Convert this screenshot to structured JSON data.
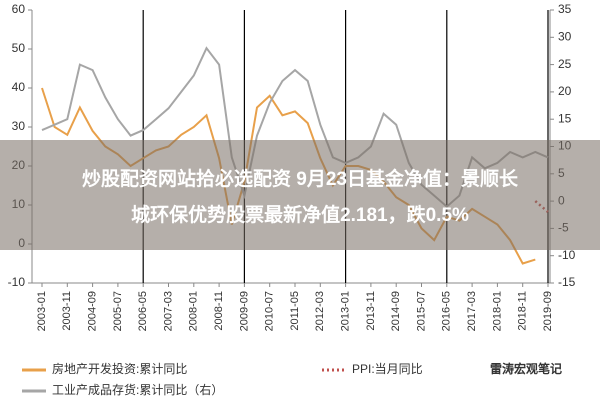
{
  "chart_data": {
    "type": "line",
    "banner": [
      "炒股配资网站拾必选配资 9月23日基金净值：景顺长",
      "城环保优势股票最新净值2.181，跌0.5%"
    ],
    "watermark": "雷涛宏观笔记",
    "xlim": [
      "2003-01",
      "2019-09"
    ],
    "xticks": [
      "2003-01",
      "2003-11",
      "2004-09",
      "2005-07",
      "2006-05",
      "2007-03",
      "2008-01",
      "2008-11",
      "2009-09",
      "2010-07",
      "2011-05",
      "2012-03",
      "2013-01",
      "2013-11",
      "2014-09",
      "2015-07",
      "2016-05",
      "2017-03",
      "2018-01",
      "2018-11",
      "2019-09"
    ],
    "separators": [
      "2006-05",
      "2009-09",
      "2013-01",
      "2016-05",
      "2019-09"
    ],
    "x": [
      "2003-01",
      "2003-06",
      "2003-11",
      "2004-04",
      "2004-09",
      "2005-02",
      "2005-07",
      "2005-12",
      "2006-05",
      "2006-10",
      "2007-03",
      "2007-08",
      "2008-01",
      "2008-06",
      "2008-11",
      "2009-04",
      "2009-09",
      "2010-02",
      "2010-07",
      "2010-12",
      "2011-05",
      "2011-10",
      "2012-03",
      "2012-08",
      "2013-01",
      "2013-06",
      "2013-11",
      "2014-04",
      "2014-09",
      "2015-02",
      "2015-07",
      "2015-12",
      "2016-05",
      "2016-10",
      "2017-03",
      "2017-08",
      "2018-01",
      "2018-06",
      "2018-11",
      "2019-04",
      "2019-09"
    ],
    "ylim": [
      -10,
      60
    ],
    "yticks": [
      -10,
      0,
      10,
      20,
      30,
      40,
      50,
      60
    ],
    "y2lim": [
      -15,
      35
    ],
    "y2ticks": [
      -15,
      -10,
      -5,
      0,
      5,
      10,
      15,
      20,
      25,
      30,
      35
    ],
    "series": [
      {
        "name": "房地产开发投资:累计同比",
        "color": "#e8a04a",
        "dash": "",
        "values": [
          40,
          30,
          28,
          35,
          29,
          25,
          23,
          20,
          22,
          24,
          25,
          28,
          30,
          33,
          22,
          5,
          16,
          35,
          38,
          33,
          34,
          31,
          22,
          15,
          20,
          20,
          19,
          16,
          12,
          10,
          4,
          1,
          7,
          6,
          9,
          7,
          5,
          1,
          -5,
          -4,
          null
        ]
      },
      {
        "name": "PPI:当月同比",
        "color": "#c0504d",
        "dash": "2 3",
        "axis": "y2",
        "values": [
          null,
          null,
          null,
          null,
          null,
          null,
          null,
          null,
          null,
          null,
          null,
          null,
          null,
          null,
          null,
          null,
          null,
          null,
          null,
          null,
          null,
          null,
          null,
          null,
          null,
          null,
          null,
          null,
          null,
          null,
          null,
          null,
          null,
          null,
          null,
          null,
          null,
          null,
          null,
          0,
          -2
        ]
      },
      {
        "name": "工业产成品存货:累计同比（右）",
        "color": "#a6a6a6",
        "dash": "",
        "axis": "y2",
        "values": [
          13,
          14,
          15,
          25,
          24,
          19,
          15,
          12,
          13,
          15,
          17,
          20,
          23,
          28,
          25,
          8,
          1,
          12,
          18,
          22,
          24,
          22,
          14,
          8,
          7,
          8,
          10,
          16,
          14,
          7,
          3,
          1,
          -1,
          1,
          8,
          6,
          7,
          9,
          8,
          9,
          8
        ]
      }
    ]
  }
}
